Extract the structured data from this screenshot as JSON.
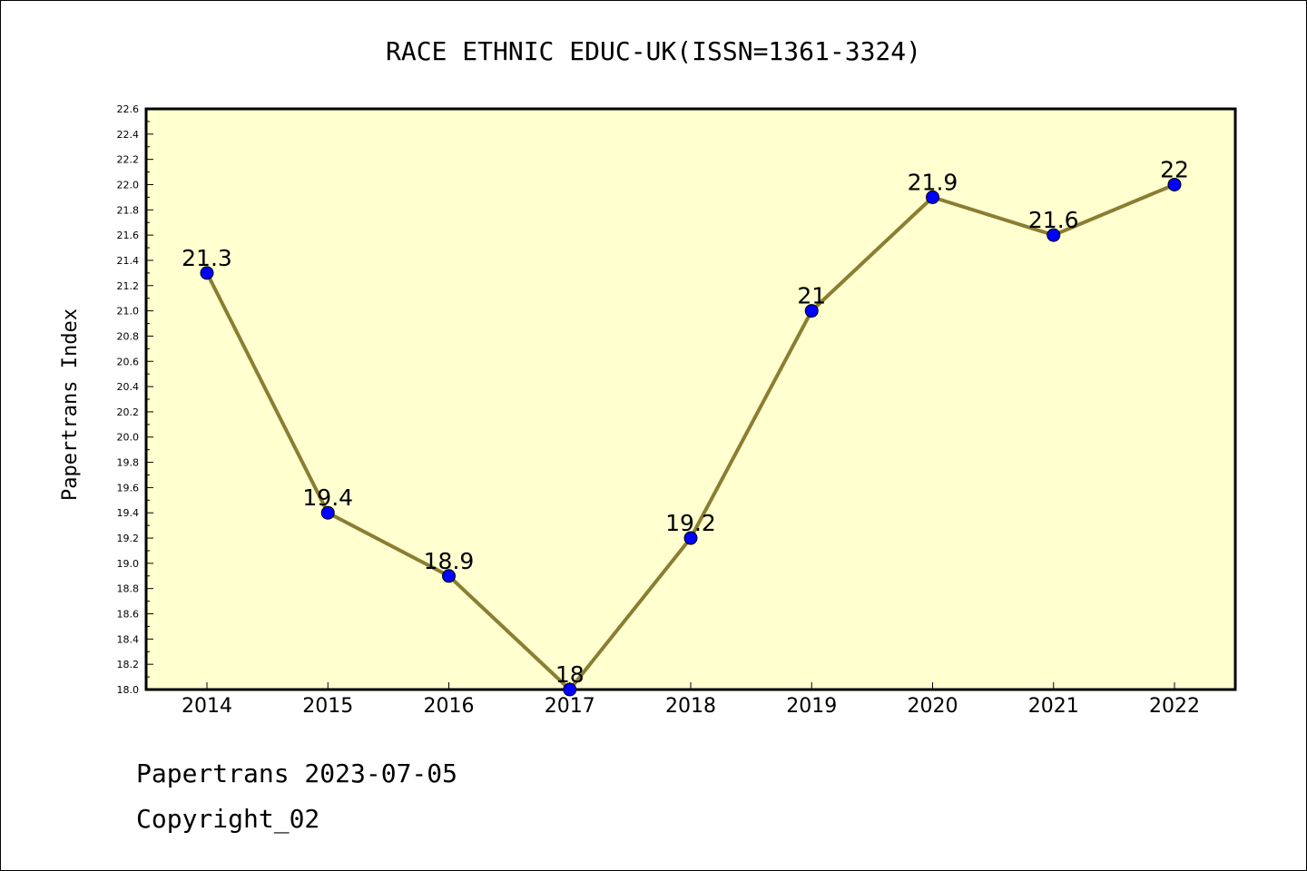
{
  "chart_data": {
    "type": "line",
    "title": "RACE ETHNIC EDUC-UK(ISSN=1361-3324)",
    "xlabel": "",
    "ylabel": "Papertrans Index",
    "categories": [
      "2014",
      "2015",
      "2016",
      "2017",
      "2018",
      "2019",
      "2020",
      "2021",
      "2022"
    ],
    "series": [
      {
        "values": [
          21.3,
          19.4,
          18.9,
          18.0,
          19.2,
          21.0,
          21.9,
          21.6,
          22.0
        ],
        "data_labels": [
          "21.3",
          "19.4",
          "18.9",
          "18",
          "19.2",
          "21",
          "21.9",
          "21.6",
          "22"
        ],
        "line_color": "#8b7d32",
        "marker_color": "#0000ff"
      }
    ],
    "ylim": [
      18.0,
      22.6
    ],
    "yticks": [
      "18.0",
      "18.2",
      "18.4",
      "18.6",
      "18.8",
      "19.0",
      "19.2",
      "19.4",
      "19.6",
      "19.8",
      "20.0",
      "20.2",
      "20.4",
      "20.6",
      "20.8",
      "21.0",
      "21.2",
      "21.4",
      "21.6",
      "21.8",
      "22.0",
      "22.2",
      "22.4",
      "22.6"
    ],
    "plot_background": "#ffffd0",
    "grid": false,
    "legend": "none"
  },
  "footer": {
    "line1": "Papertrans 2023-07-05",
    "line2": "Copyright_02"
  }
}
